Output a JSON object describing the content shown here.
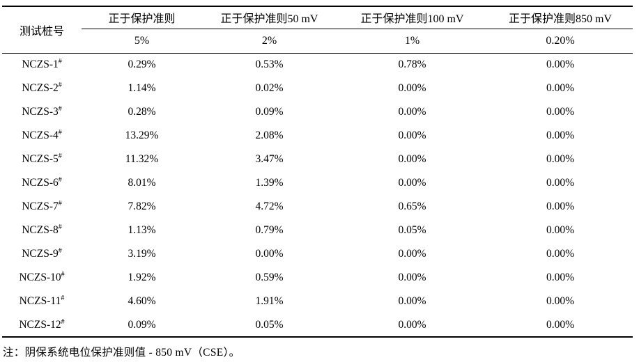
{
  "colors": {
    "background": "#ffffff",
    "text": "#000000",
    "rule": "#000000"
  },
  "table": {
    "pile_header": "测试桩号",
    "criteria_headers": [
      "正于保护准则",
      "正于保护准则50 mV",
      "正于保护准则100 mV",
      "正于保护准则850 mV"
    ],
    "thresholds": [
      "5%",
      "2%",
      "1%",
      "0.20%"
    ],
    "rows": [
      {
        "pile": "NCZS-1",
        "sup": "#",
        "values": [
          "0.29%",
          "0.53%",
          "0.78%",
          "0.00%"
        ]
      },
      {
        "pile": "NCZS-2",
        "sup": "#",
        "values": [
          "1.14%",
          "0.02%",
          "0.00%",
          "0.00%"
        ]
      },
      {
        "pile": "NCZS-3",
        "sup": "#",
        "values": [
          "0.28%",
          "0.09%",
          "0.00%",
          "0.00%"
        ]
      },
      {
        "pile": "NCZS-4",
        "sup": "#",
        "values": [
          "13.29%",
          "2.08%",
          "0.00%",
          "0.00%"
        ]
      },
      {
        "pile": "NCZS-5",
        "sup": "#",
        "values": [
          "11.32%",
          "3.47%",
          "0.00%",
          "0.00%"
        ]
      },
      {
        "pile": "NCZS-6",
        "sup": "#",
        "values": [
          "8.01%",
          "1.39%",
          "0.00%",
          "0.00%"
        ]
      },
      {
        "pile": "NCZS-7",
        "sup": "#",
        "values": [
          "7.82%",
          "4.72%",
          "0.65%",
          "0.00%"
        ]
      },
      {
        "pile": "NCZS-8",
        "sup": "#",
        "values": [
          "1.13%",
          "0.79%",
          "0.05%",
          "0.00%"
        ]
      },
      {
        "pile": "NCZS-9",
        "sup": "#",
        "values": [
          "3.19%",
          "0.00%",
          "0.00%",
          "0.00%"
        ]
      },
      {
        "pile": "NCZS-10",
        "sup": "#",
        "values": [
          "1.92%",
          "0.59%",
          "0.00%",
          "0.00%"
        ]
      },
      {
        "pile": "NCZS-11",
        "sup": "#",
        "values": [
          "4.60%",
          "1.91%",
          "0.00%",
          "0.00%"
        ]
      },
      {
        "pile": "NCZS-12",
        "sup": "#",
        "values": [
          "0.09%",
          "0.05%",
          "0.00%",
          "0.00%"
        ]
      }
    ]
  },
  "note": "注：阴保系统电位保护准则值 - 850 mV（CSE）。"
}
